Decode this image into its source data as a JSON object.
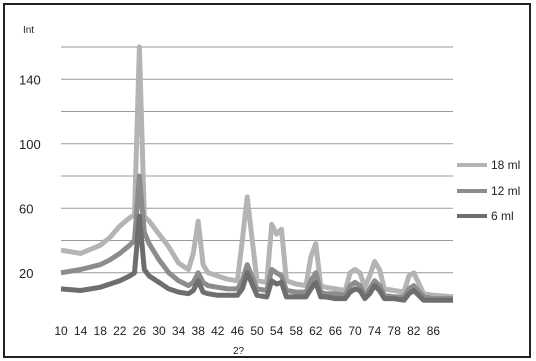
{
  "chart_data": {
    "type": "line",
    "ylabel": "Int",
    "xlabel": "2?",
    "x_ticks": [
      "10",
      "14",
      "18",
      "22",
      "26",
      "30",
      "34",
      "38",
      "42",
      "46",
      "50",
      "54",
      "58",
      "62",
      "66",
      "70",
      "74",
      "78",
      "82",
      "86"
    ],
    "y_ticks": [
      "20",
      "60",
      "100",
      "140"
    ],
    "ylim": [
      0,
      160
    ],
    "xlim": [
      10,
      90
    ],
    "grid": true,
    "legend_position": "right",
    "x": [
      10,
      14,
      18,
      20,
      22,
      24,
      25,
      26,
      27,
      28,
      30,
      32,
      34,
      36,
      37,
      38,
      39,
      40,
      42,
      44,
      46,
      47,
      48,
      50,
      52,
      53,
      54,
      55,
      56,
      58,
      60,
      61,
      62,
      63,
      64,
      66,
      68,
      69,
      70,
      71,
      72,
      73,
      74,
      75,
      76,
      78,
      80,
      81,
      82,
      84,
      86,
      90
    ],
    "series": [
      {
        "name": "18 ml",
        "color": "#b4b4b4",
        "values": [
          34,
          32,
          37,
          42,
          49,
          54,
          56,
          160,
          55,
          52,
          44,
          36,
          26,
          22,
          32,
          52,
          25,
          20,
          18,
          16,
          15,
          40,
          67,
          15,
          14,
          50,
          44,
          47,
          15,
          13,
          12,
          30,
          38,
          12,
          11,
          10,
          9,
          20,
          22,
          20,
          11,
          18,
          27,
          22,
          10,
          9,
          8,
          18,
          20,
          7,
          6,
          5
        ]
      },
      {
        "name": "12 ml",
        "color": "#8c8c8c",
        "values": [
          20,
          22,
          25,
          28,
          32,
          37,
          40,
          80,
          45,
          38,
          28,
          20,
          15,
          12,
          14,
          20,
          14,
          12,
          11,
          10,
          10,
          15,
          25,
          10,
          9,
          22,
          20,
          18,
          9,
          8,
          8,
          15,
          20,
          8,
          7,
          7,
          6,
          12,
          14,
          12,
          6,
          10,
          15,
          12,
          6,
          5,
          5,
          10,
          12,
          5,
          4,
          4
        ]
      },
      {
        "name": "6 ml",
        "color": "#6e6e6e",
        "values": [
          10,
          9,
          11,
          13,
          15,
          18,
          20,
          55,
          22,
          18,
          14,
          10,
          8,
          7,
          9,
          15,
          8,
          7,
          6,
          6,
          6,
          10,
          20,
          6,
          5,
          15,
          13,
          14,
          5,
          5,
          5,
          10,
          14,
          5,
          5,
          4,
          4,
          8,
          10,
          9,
          4,
          7,
          12,
          9,
          4,
          4,
          3,
          7,
          9,
          3,
          3,
          3
        ]
      }
    ]
  }
}
